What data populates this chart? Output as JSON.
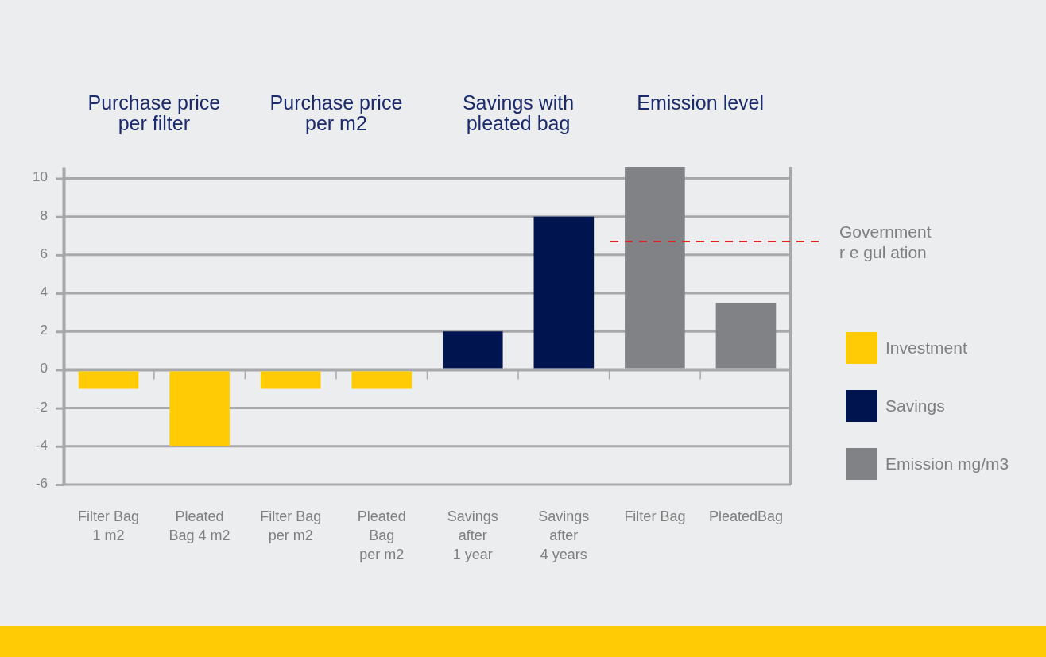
{
  "chart_data": {
    "type": "bar",
    "categories": [
      "Filter Bag\n1 m2",
      "Pleated\nBag 4 m2",
      "Filter Bag\nper m2",
      "Pleated\nBag\nper m2",
      "Savings\nafter\n1 year",
      "Savings\nafter\n4 years",
      "Filter Bag",
      "PleatedBag"
    ],
    "series": [
      {
        "name": "Investment",
        "color": "#ffcb05",
        "values": [
          -1,
          -4,
          -1,
          -1,
          null,
          null,
          null,
          null
        ]
      },
      {
        "name": "Savings",
        "color": "#001450",
        "values": [
          null,
          null,
          null,
          null,
          2,
          8,
          null,
          null
        ]
      },
      {
        "name": "Emission mg/m3",
        "color": "#818285",
        "values": [
          null,
          null,
          null,
          null,
          null,
          null,
          10.6,
          3.5
        ]
      }
    ],
    "ylim": [
      -6,
      10.6
    ],
    "yticks": [
      -6,
      -4,
      -2,
      0,
      2,
      4,
      6,
      8,
      10
    ],
    "grid": "y",
    "legend": "right",
    "ref_lines": [
      {
        "axis": "y",
        "value": 6.7,
        "label": "Government\nr e gul ation",
        "color": "#e41e26",
        "line_style": "dashed"
      }
    ],
    "annotations": [
      "Purchase price\nper filter",
      "Purchase price\nper m2",
      "Savings with\npleated bag",
      "Emission level"
    ]
  }
}
